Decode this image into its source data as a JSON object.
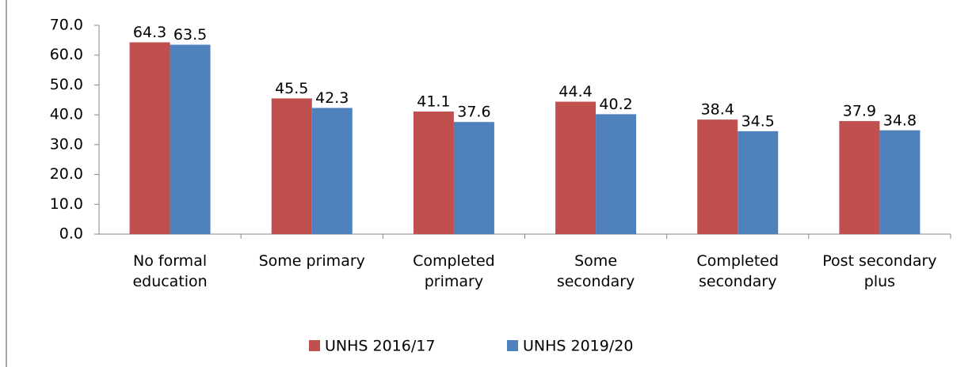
{
  "chart_data": {
    "type": "bar",
    "categories": [
      "No formal education",
      "Some primary",
      "Completed primary",
      "Some secondary",
      "Completed secondary",
      "Post secondary plus"
    ],
    "series": [
      {
        "name": "UNHS 2016/17",
        "color": "#c0504d",
        "values": [
          64.3,
          45.5,
          41.1,
          44.4,
          38.4,
          37.9
        ]
      },
      {
        "name": "UNHS 2019/20",
        "color": "#4f81bd",
        "values": [
          63.5,
          42.3,
          37.6,
          40.2,
          34.5,
          34.8
        ]
      }
    ],
    "ylim": [
      0,
      70
    ],
    "yticks": [
      {
        "value": 0,
        "label": "0.0"
      },
      {
        "value": 10,
        "label": "10.0"
      },
      {
        "value": 20,
        "label": "20.0"
      },
      {
        "value": 30,
        "label": "30.0"
      },
      {
        "value": 40,
        "label": "40.0"
      },
      {
        "value": 50,
        "label": "50.0"
      },
      {
        "value": 60,
        "label": "60.0"
      },
      {
        "value": 70,
        "label": "70.0"
      }
    ],
    "legend": "bottom"
  }
}
